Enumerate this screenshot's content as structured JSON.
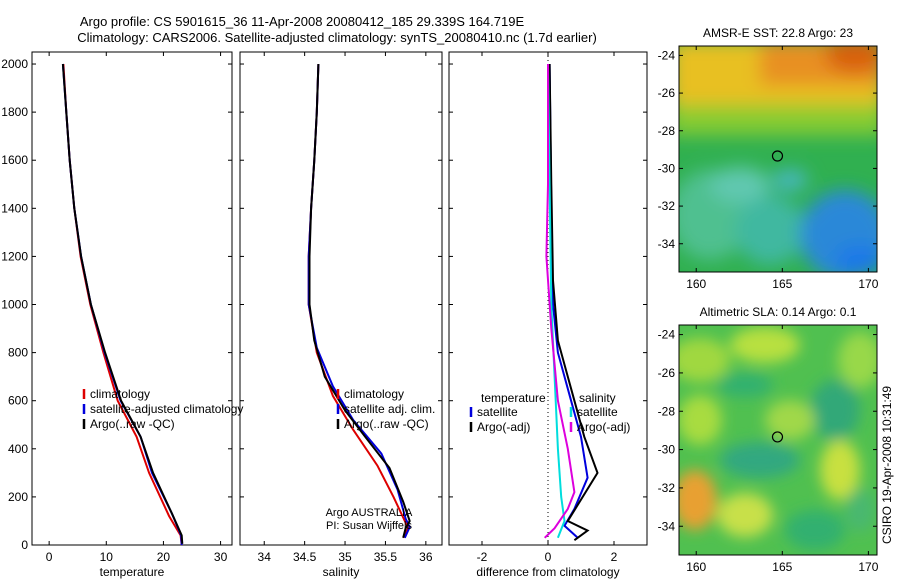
{
  "title_lines": [
    "Argo profile: CS 5901615_36 11-Apr-2008 20080412_185 29.339S 164.719E",
    "Climatology: CARS2006. Satellite-adjusted climatology: synTS_20080410.nc (1.7d earlier)"
  ],
  "side_text": "CSIRO 19-Apr-2008 10:31:49",
  "chart_data": [
    {
      "type": "line",
      "panel": "temperature",
      "xlabel": "temperature",
      "ylabel": "",
      "xlim": [
        -3,
        32
      ],
      "ylim": [
        2050,
        0
      ],
      "xticks": [
        0,
        10,
        20,
        30
      ],
      "yticks": [
        0,
        200,
        400,
        600,
        800,
        1000,
        1200,
        1400,
        1600,
        1800,
        2000
      ],
      "legend": [
        "climatology",
        "satellite-adjusted climatology",
        "Argo(..raw -QC)"
      ],
      "series": [
        {
          "name": "climatology",
          "color": "#dd0000",
          "points": [
            [
              23.2,
              0
            ],
            [
              23.0,
              40
            ],
            [
              21,
              120
            ],
            [
              17.5,
              300
            ],
            [
              15.3,
              450
            ],
            [
              12,
              600
            ],
            [
              9.5,
              800
            ],
            [
              7.2,
              1000
            ],
            [
              5.5,
              1200
            ],
            [
              4.4,
              1400
            ],
            [
              3.6,
              1600
            ],
            [
              3.0,
              1800
            ],
            [
              2.5,
              2000
            ]
          ]
        },
        {
          "name": "satellite-adjusted climatology",
          "color": "#0000dd",
          "points": [
            [
              23.2,
              0
            ],
            [
              23.1,
              40
            ],
            [
              21.5,
              130
            ],
            [
              18,
              300
            ],
            [
              16,
              450
            ],
            [
              12.5,
              600
            ],
            [
              9.7,
              800
            ],
            [
              7.3,
              1000
            ],
            [
              5.6,
              1200
            ],
            [
              4.4,
              1400
            ],
            [
              3.6,
              1600
            ],
            [
              3.0,
              1800
            ],
            [
              2.4,
              2000
            ]
          ]
        },
        {
          "name": "Argo(..raw -QC)",
          "color": "#000000",
          "points": [
            [
              23.3,
              5
            ],
            [
              23.2,
              40
            ],
            [
              21.5,
              130
            ],
            [
              18.2,
              300
            ],
            [
              16,
              450
            ],
            [
              12.6,
              600
            ],
            [
              9.8,
              800
            ],
            [
              7.3,
              1000
            ],
            [
              5.6,
              1200
            ],
            [
              4.4,
              1400
            ],
            [
              3.6,
              1600
            ],
            [
              3.0,
              1800
            ],
            [
              2.4,
              2000
            ]
          ]
        }
      ]
    },
    {
      "type": "line",
      "panel": "salinity",
      "xlabel": "salinity",
      "ylabel": "",
      "xlim": [
        33.7,
        36.2
      ],
      "ylim": [
        2050,
        0
      ],
      "xticks": [
        34,
        34.5,
        35,
        35.5,
        36
      ],
      "legend": [
        "climatology",
        "satellite adj. clim.",
        "Argo(..raw -QC)"
      ],
      "annotation": [
        "Argo AUSTRALIA",
        "PI: Susan Wijffels"
      ],
      "series": [
        {
          "name": "climatology",
          "color": "#dd0000",
          "points": [
            [
              35.72,
              30
            ],
            [
              35.78,
              70
            ],
            [
              35.74,
              100
            ],
            [
              35.6,
              200
            ],
            [
              35.4,
              330
            ],
            [
              35.1,
              480
            ],
            [
              34.85,
              620
            ],
            [
              34.65,
              800
            ],
            [
              34.55,
              1000
            ],
            [
              34.55,
              1200
            ],
            [
              34.58,
              1400
            ],
            [
              34.62,
              1600
            ],
            [
              34.65,
              1800
            ],
            [
              34.67,
              2000
            ]
          ]
        },
        {
          "name": "satellite adj. clim.",
          "color": "#0000dd",
          "points": [
            [
              35.74,
              30
            ],
            [
              35.8,
              75
            ],
            [
              35.75,
              110
            ],
            [
              35.65,
              230
            ],
            [
              35.45,
              380
            ],
            [
              35.1,
              520
            ],
            [
              34.85,
              660
            ],
            [
              34.65,
              820
            ],
            [
              34.55,
              1000
            ],
            [
              34.55,
              1200
            ],
            [
              34.58,
              1400
            ],
            [
              34.62,
              1600
            ],
            [
              34.65,
              1800
            ],
            [
              34.67,
              2000
            ]
          ]
        },
        {
          "name": "Argo(..raw -QC)",
          "color": "#000000",
          "points": [
            [
              35.72,
              30
            ],
            [
              35.75,
              70
            ],
            [
              35.8,
              100
            ],
            [
              35.72,
              180
            ],
            [
              35.55,
              320
            ],
            [
              35.25,
              450
            ],
            [
              35.0,
              560
            ],
            [
              34.75,
              700
            ],
            [
              34.62,
              850
            ],
            [
              34.56,
              1000
            ],
            [
              34.56,
              1200
            ],
            [
              34.58,
              1400
            ],
            [
              34.62,
              1600
            ],
            [
              34.65,
              1800
            ],
            [
              34.67,
              2000
            ]
          ]
        }
      ]
    },
    {
      "type": "line",
      "panel": "difference",
      "xlabel": "difference from climatology",
      "ylabel": "",
      "xlim": [
        -3,
        3
      ],
      "ylim": [
        2050,
        0
      ],
      "xticks": [
        -2,
        0,
        2
      ],
      "legend_groups": {
        "temperature": [
          "satellite",
          "Argo(-adj)"
        ],
        "salinity": [
          "satellite",
          "Argo(-adj)"
        ]
      },
      "series": [
        {
          "name": "temperature satellite",
          "color": "#0000dd",
          "points": [
            [
              0.9,
              30
            ],
            [
              0.5,
              80
            ],
            [
              0.8,
              150
            ],
            [
              1.2,
              280
            ],
            [
              1.0,
              450
            ],
            [
              0.6,
              650
            ],
            [
              0.3,
              800
            ],
            [
              0.15,
              1000
            ],
            [
              0.1,
              1400
            ],
            [
              0.05,
              2000
            ]
          ]
        },
        {
          "name": "temperature Argo(-adj)",
          "color": "#000000",
          "points": [
            [
              0.8,
              20
            ],
            [
              1.2,
              60
            ],
            [
              0.6,
              100
            ],
            [
              1.5,
              300
            ],
            [
              1.1,
              450
            ],
            [
              0.7,
              650
            ],
            [
              0.3,
              850
            ],
            [
              0.15,
              1100
            ],
            [
              0.1,
              1500
            ],
            [
              0.05,
              2000
            ]
          ]
        },
        {
          "name": "salinity satellite",
          "color": "#00dddd",
          "points": [
            [
              0.3,
              30
            ],
            [
              0.5,
              100
            ],
            [
              0.4,
              200
            ],
            [
              0.3,
              400
            ],
            [
              0.2,
              700
            ],
            [
              0.1,
              1000
            ],
            [
              0.05,
              1500
            ],
            [
              0.0,
              2000
            ]
          ]
        },
        {
          "name": "salinity Argo(-adj)",
          "color": "#dd00dd",
          "points": [
            [
              -0.1,
              30
            ],
            [
              0.2,
              70
            ],
            [
              0.6,
              150
            ],
            [
              0.8,
              220
            ],
            [
              0.6,
              400
            ],
            [
              0.3,
              600
            ],
            [
              0.1,
              900
            ],
            [
              -0.05,
              1200
            ],
            [
              0,
              1500
            ],
            [
              0,
              2000
            ]
          ]
        }
      ]
    },
    {
      "type": "heatmap",
      "panel": "sst_map",
      "title": "AMSR-E SST: 22.8 Argo: 23",
      "xticks": [
        160,
        165,
        170
      ],
      "yticks": [
        -24,
        -26,
        -28,
        -30,
        -32,
        -34
      ],
      "xlim": [
        159,
        170.5
      ],
      "ylim": [
        -35.5,
        -23.5
      ],
      "marker": [
        164.72,
        -29.34
      ]
    },
    {
      "type": "heatmap",
      "panel": "sla_map",
      "title": "Altimetric SLA: 0.14 Argo: 0.1",
      "xticks": [
        160,
        165,
        170
      ],
      "yticks": [
        -24,
        -26,
        -28,
        -30,
        -32,
        -34
      ],
      "xlim": [
        159,
        170.5
      ],
      "ylim": [
        -35.5,
        -23.5
      ],
      "marker": [
        164.72,
        -29.34
      ]
    }
  ]
}
